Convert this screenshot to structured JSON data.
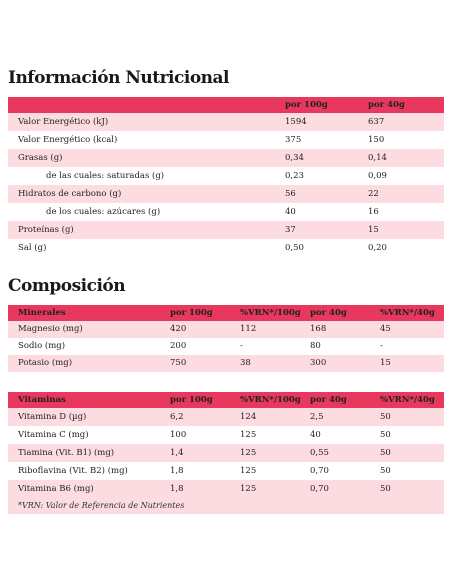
{
  "nutrition": {
    "title": "Información Nutricional",
    "columns": [
      "por 100g",
      "por 40g"
    ],
    "rows": [
      {
        "label": "Valor Energético (kJ)",
        "values": [
          "1594",
          "637"
        ]
      },
      {
        "label": "Valor Energético (kcal)",
        "values": [
          "375",
          "150"
        ]
      },
      {
        "label": "Grasas (g)",
        "values": [
          "0,34",
          "0,14"
        ]
      },
      {
        "label": "de las cuales: saturadas (g)",
        "values": [
          "0,23",
          "0,09"
        ],
        "indented": true
      },
      {
        "label": "Hidratos de carbono (g)",
        "values": [
          "56",
          "22"
        ]
      },
      {
        "label": "de los cuales: azúcares (g)",
        "values": [
          "40",
          "16"
        ],
        "indented": true
      },
      {
        "label": "Proteínas (g)",
        "values": [
          "37",
          "15"
        ]
      },
      {
        "label": "Sal (g)",
        "values": [
          "0,50",
          "0,20"
        ]
      }
    ]
  },
  "composition": {
    "title": "Composición",
    "minerals": {
      "columns": [
        "Minerales",
        "por 100g",
        "%VRN*/100g",
        "por 40g",
        "%VRN*/40g"
      ],
      "rows": [
        [
          "Magnesio (mg)",
          "420",
          "112",
          "168",
          "45"
        ],
        [
          "Sodio (mg)",
          "200",
          "-",
          "80",
          "-"
        ],
        [
          "Potasio (mg)",
          "750",
          "38",
          "300",
          "15"
        ]
      ]
    },
    "vitamins": {
      "columns": [
        "Vitaminas",
        "por 100g",
        "%VRN*/100g",
        "por 40g",
        "%VRN*/40g"
      ],
      "rows": [
        [
          "Vitamina D (µg)",
          "6,2",
          "124",
          "2,5",
          "50"
        ],
        [
          "Vitamina C (mg)",
          "100",
          "125",
          "40",
          "50"
        ],
        [
          "Tiamina (Vit. B1) (mg)",
          "1,4",
          "125",
          "0,55",
          "50"
        ],
        [
          "Riboflavina (Vit. B2) (mg)",
          "1,8",
          "125",
          "0,70",
          "50"
        ],
        [
          "Vitamina B6 (mg)",
          "1,8",
          "125",
          "0,70",
          "50"
        ]
      ]
    },
    "footnote": "*VRN: Valor de Referencia de Nutrientes"
  }
}
